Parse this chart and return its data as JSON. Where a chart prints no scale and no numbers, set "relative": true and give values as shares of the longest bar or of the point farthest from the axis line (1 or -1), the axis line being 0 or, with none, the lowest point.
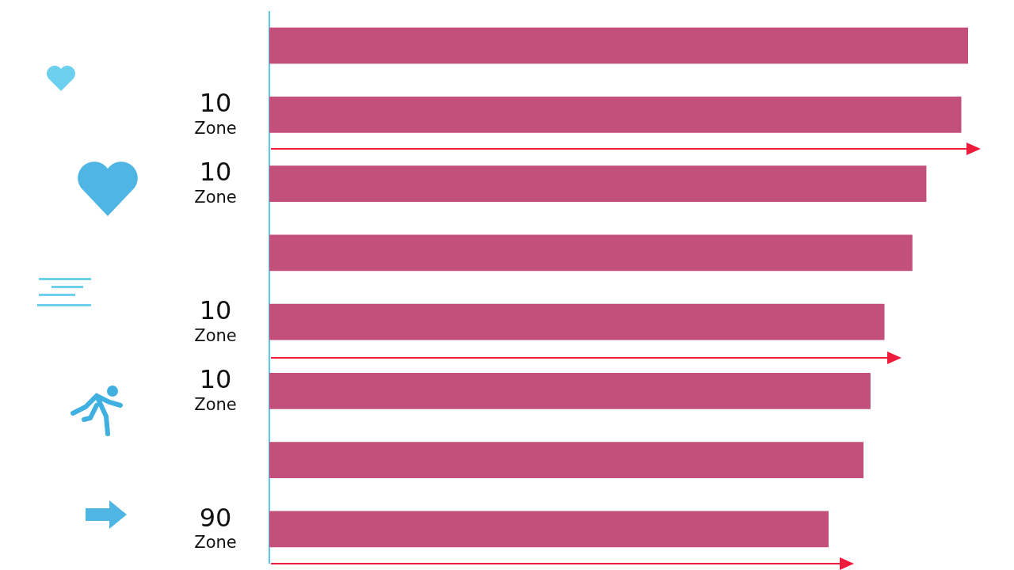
{
  "chart_data": {
    "type": "bar",
    "orientation": "horizontal",
    "relative": true,
    "legend": false,
    "categories": [
      null,
      "10 Zone",
      "10 Zone",
      null,
      "10 Zone",
      "10 Zone",
      null,
      "90 Zone"
    ],
    "series": [
      {
        "color": "#c2507a",
        "values": [
          1,
          0.99,
          0.94,
          0.92,
          0.88,
          0.86,
          0.85,
          0.8
        ]
      }
    ]
  }
}
